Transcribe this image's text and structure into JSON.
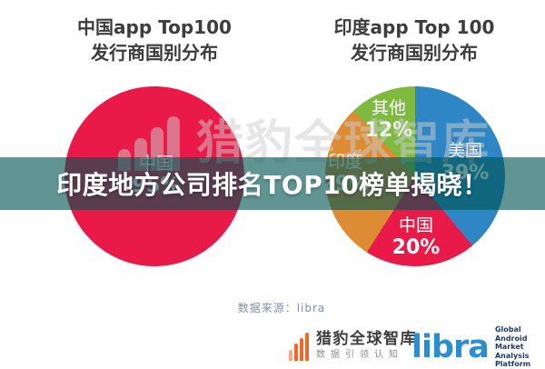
{
  "left_chart": {
    "title_line1": "中国app Top100",
    "title_line2": "发行商国别分布"
  },
  "right_chart": {
    "title_line1": "印度app Top 100",
    "title_line2": "发行商国别分布"
  },
  "banner": {
    "text": "印度地方公司排名TOP10榜单揭晓！",
    "overlay_color": "#00544E"
  },
  "watermark": {
    "text": "猎豹全球智库"
  },
  "source": {
    "text": "数据来源：libra"
  },
  "footer": {
    "cheetah": {
      "name": "猎豹全球智库",
      "tagline": "数据引领认知",
      "brand_color": "#F2672A"
    },
    "libra": {
      "name": "libra",
      "tagline_line1": "Global",
      "tagline_line2": "Android Market",
      "tagline_line3": "Analysis Platform",
      "brand_color": "#2A8FD0"
    }
  },
  "chart_data": [
    {
      "type": "pie",
      "title": "中国app Top100 发行商国别分布",
      "legend_position": "inside",
      "slices": [
        {
          "label": "中国",
          "value": 95,
          "pct_label": "95%",
          "color": "#E91A48"
        }
      ]
    },
    {
      "type": "pie",
      "title": "印度app Top 100 发行商国别分布",
      "legend_position": "inside",
      "start_angle_deg": 0,
      "direction": "clockwise",
      "slices": [
        {
          "label": "美国",
          "value": 39,
          "pct_label": "39%",
          "color": "#2E86C4"
        },
        {
          "label": "中国",
          "value": 20,
          "pct_label": "20%",
          "color": "#E91A48"
        },
        {
          "label": "印度",
          "value": 29,
          "pct_label": "29%",
          "color": "#DE8C33"
        },
        {
          "label": "其他",
          "value": 12,
          "pct_label": "12%",
          "color": "#7FBA40"
        }
      ]
    }
  ]
}
